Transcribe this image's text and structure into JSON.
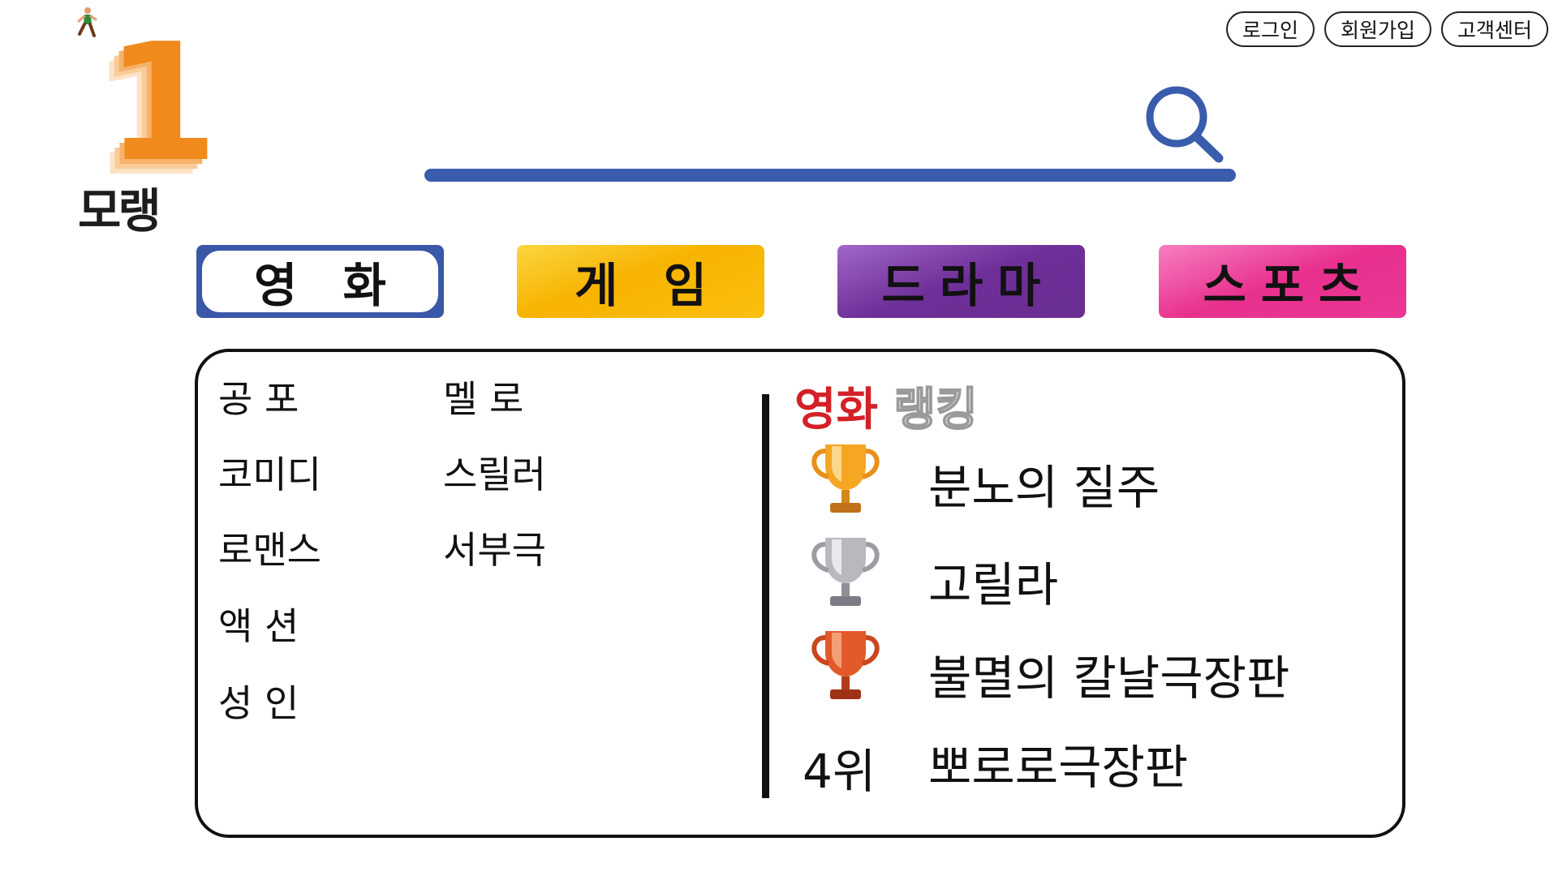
{
  "brand": {
    "number": "1",
    "name": "모랭"
  },
  "top_links": [
    "로그인",
    "회원가입",
    "고객센터"
  ],
  "search": {
    "placeholder": ""
  },
  "tabs": [
    {
      "label": "영 화",
      "color": "#3a57a8"
    },
    {
      "label": "게 임",
      "color": "#f7b300"
    },
    {
      "label": "드라마",
      "color": "#6e2f98"
    },
    {
      "label": "스포츠",
      "color": "#e8308d"
    }
  ],
  "genres": {
    "col1": [
      "공 포",
      "코미디",
      "로맨스",
      "액 션",
      "성 인"
    ],
    "col2": [
      "멜 로",
      "스릴러",
      "서부극"
    ]
  },
  "ranking": {
    "title_a": "영화",
    "title_b": "랭킹",
    "items": [
      {
        "title": "분노의 질주",
        "trophy": "gold-trophy-icon"
      },
      {
        "title": "고릴라",
        "trophy": "silver-trophy-icon"
      },
      {
        "title": "불멸의 칼날극장판",
        "trophy": "bronze-trophy-icon"
      },
      {
        "rank": "4위",
        "title": "뽀로로극장판"
      }
    ]
  },
  "colors": {
    "accent": "#3a5cad",
    "ranking_red": "#d42027",
    "logo_orange": "#f08a1c"
  }
}
